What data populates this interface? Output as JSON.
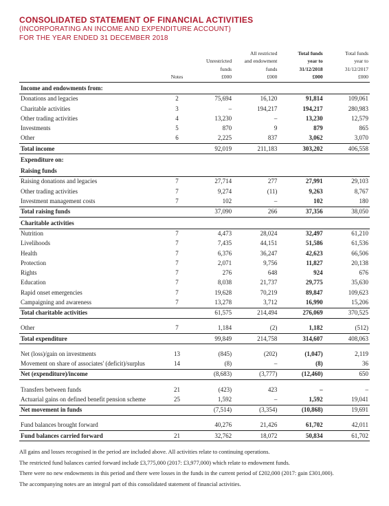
{
  "title": "CONSOLIDATED STATEMENT OF FINANCIAL ACTIVITIES",
  "subtitle_l1": "(INCORPORATING AN INCOME AND EXPENDITURE ACCOUNT)",
  "subtitle_l2": "FOR THE YEAR ENDED 31 DECEMBER 2018",
  "colheads": {
    "notes": "Notes",
    "c1_l1": "Unrestricted",
    "c1_l2": "funds",
    "c1_l3": "£000",
    "c2_l1": "All restricted",
    "c2_l2": "and endowment",
    "c2_l3": "funds",
    "c2_l4": "£000",
    "c3_l1": "Total funds",
    "c3_l2": "year to",
    "c3_l3": "31/12/2018",
    "c3_l4": "£000",
    "c4_l1": "Total funds",
    "c4_l2": "year to",
    "c4_l3": "31/12/2017",
    "c4_l4": "£000"
  },
  "rows": {
    "sec_income": "Income and endowments from:",
    "donations": {
      "l": "Donations and legacies",
      "n": "2",
      "a": "75,694",
      "b": "16,120",
      "c": "91,814",
      "d": "109,061"
    },
    "char_act": {
      "l": "Charitable activities",
      "n": "3",
      "a": "–",
      "b": "194,217",
      "c": "194,217",
      "d": "280,983"
    },
    "other_trad": {
      "l": "Other trading activities",
      "n": "4",
      "a": "13,230",
      "b": "–",
      "c": "13,230",
      "d": "12,579"
    },
    "invest": {
      "l": "Investments",
      "n": "5",
      "a": "870",
      "b": "9",
      "c": "879",
      "d": "865"
    },
    "other_inc": {
      "l": "Other",
      "n": "6",
      "a": "2,225",
      "b": "837",
      "c": "3,062",
      "d": "3,070"
    },
    "tot_inc": {
      "l": "Total income",
      "n": "",
      "a": "92,019",
      "b": "211,183",
      "c": "303,202",
      "d": "406,558"
    },
    "sec_exp": "Expenditure on:",
    "sec_raise": "Raising funds",
    "rdl": {
      "l": "Raising donations and legacies",
      "n": "7",
      "a": "27,714",
      "b": "277",
      "c": "27,991",
      "d": "29,103"
    },
    "oth_trad2": {
      "l": "Other trading activities",
      "n": "7",
      "a": "9,274",
      "b": "(11)",
      "c": "9,263",
      "d": "8,767"
    },
    "imc": {
      "l": "Investment management costs",
      "n": "7",
      "a": "102",
      "b": "–",
      "c": "102",
      "d": "180"
    },
    "tot_raise": {
      "l": "Total raising funds",
      "n": "",
      "a": "37,090",
      "b": "266",
      "c": "37,356",
      "d": "38,050"
    },
    "sec_char": "Charitable activities",
    "nutrition": {
      "l": "Nutrition",
      "n": "7",
      "a": "4,473",
      "b": "28,024",
      "c": "32,497",
      "d": "61,210"
    },
    "liveli": {
      "l": "Livelihoods",
      "n": "7",
      "a": "7,435",
      "b": "44,151",
      "c": "51,586",
      "d": "61,536"
    },
    "health": {
      "l": "Health",
      "n": "7",
      "a": "6,376",
      "b": "36,247",
      "c": "42,623",
      "d": "66,506"
    },
    "protect": {
      "l": "Protection",
      "n": "7",
      "a": "2,071",
      "b": "9,756",
      "c": "11,827",
      "d": "20,138"
    },
    "rights": {
      "l": "Rights",
      "n": "7",
      "a": "276",
      "b": "648",
      "c": "924",
      "d": "676"
    },
    "educ": {
      "l": "Education",
      "n": "7",
      "a": "8,038",
      "b": "21,737",
      "c": "29,775",
      "d": "35,630"
    },
    "rapid": {
      "l": "Rapid onset emergencies",
      "n": "7",
      "a": "19,628",
      "b": "70,219",
      "c": "89,847",
      "d": "109,623"
    },
    "campaign": {
      "l": "Campaigning and awareness",
      "n": "7",
      "a": "13,278",
      "b": "3,712",
      "c": "16,990",
      "d": "15,206"
    },
    "tot_char": {
      "l": "Total charitable activities",
      "n": "",
      "a": "61,575",
      "b": "214,494",
      "c": "276,069",
      "d": "370,525"
    },
    "other_exp": {
      "l": "Other",
      "n": "7",
      "a": "1,184",
      "b": "(2)",
      "c": "1,182",
      "d": "(512)"
    },
    "tot_exp": {
      "l": "Total expenditure",
      "n": "",
      "a": "99,849",
      "b": "214,758",
      "c": "314,607",
      "d": "408,063"
    },
    "netloss": {
      "l": "Net (loss)/gain on investments",
      "n": "13",
      "a": "(845)",
      "b": "(202)",
      "c": "(1,047)",
      "d": "2,119"
    },
    "moveassoc": {
      "l": "Movement on share of associates' (deficit)/surplus",
      "n": "14",
      "a": "(8)",
      "b": "–",
      "c": "(8)",
      "d": "36"
    },
    "netexp": {
      "l": "Net (expenditure)/income",
      "n": "",
      "a": "(8,683)",
      "b": "(3,777)",
      "c": "(12,460)",
      "d": "650"
    },
    "transfers": {
      "l": "Transfers between funds",
      "n": "21",
      "a": "(423)",
      "b": "423",
      "c": "–",
      "d": "–"
    },
    "actuarial": {
      "l": "Actuarial gains on defined benefit pension scheme",
      "n": "25",
      "a": "1,592",
      "b": "–",
      "c": "1,592",
      "d": "19,041"
    },
    "netmove": {
      "l": "Net movement in funds",
      "n": "",
      "a": "(7,514)",
      "b": "(3,354)",
      "c": "(10,868)",
      "d": "19,691"
    },
    "bf": {
      "l": "Fund balances brought forward",
      "n": "",
      "a": "40,276",
      "b": "21,426",
      "c": "61,702",
      "d": "42,011"
    },
    "cf": {
      "l": "Fund balances carried forward",
      "n": "21",
      "a": "32,762",
      "b": "18,072",
      "c": "50,834",
      "d": "61,702"
    }
  },
  "footnotes": {
    "n1": "All gains and losses recognised in the period are included above. All activities relate to continuing operations.",
    "n2": "The restricted fund balances carried forward include £3,775,000 (2017: £3,977,000) which relate to endowment funds.",
    "n3": "There were no new endowments in this period and there were losses in the funds in the current period of £202,000 (2017: gain £301,000).",
    "n4": "The accompanying notes are an integral part of this consolidated statement of financial activities."
  }
}
